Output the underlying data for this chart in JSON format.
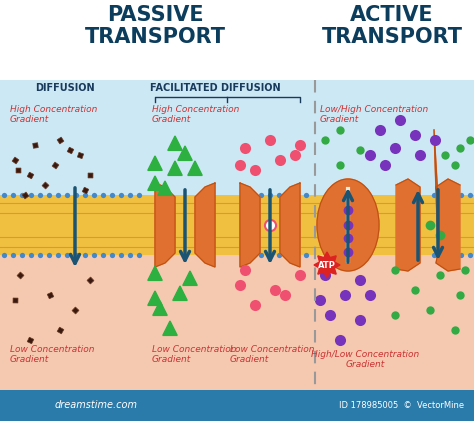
{
  "bg_color": "#ffffff",
  "light_blue_bg": "#cce8f4",
  "salmon_bg": "#f5c8b0",
  "membrane_yellow": "#f0c040",
  "membrane_orange": "#e07828",
  "protein_color": "#e07030",
  "protein_edge": "#c05010",
  "arrow_color": "#1a5472",
  "title_color": "#0d3d5c",
  "label_red": "#cc3333",
  "label_dark": "#1a3a5c",
  "dot_blue": "#4488cc",
  "footer_color": "#2a7aaa",
  "divider_color": "#999999",
  "passive_title": "PASSIVE\nTRANSPORT",
  "active_title": "ACTIVE\nTRANSPORT",
  "diffusion_lbl": "DIFFUSION",
  "facilitated_lbl": "FACILITATED DIFFUSION",
  "high_conc": "High Concentration\nGradient",
  "low_conc": "Low Concentration\nGradient",
  "low_high": "Low/High Concentration\nGradient",
  "high_low": "High/Low Concentration\nGradient",
  "atp_lbl": "ATP",
  "footer_left": "dreamstime.com",
  "footer_right": "ID 178985005  ©  VectorMine",
  "brown_dark": "#3a1a10",
  "green_tri": "#2db040",
  "pink_circ": "#f05070",
  "purple_circ": "#7733bb",
  "green_sm": "#33aa44"
}
